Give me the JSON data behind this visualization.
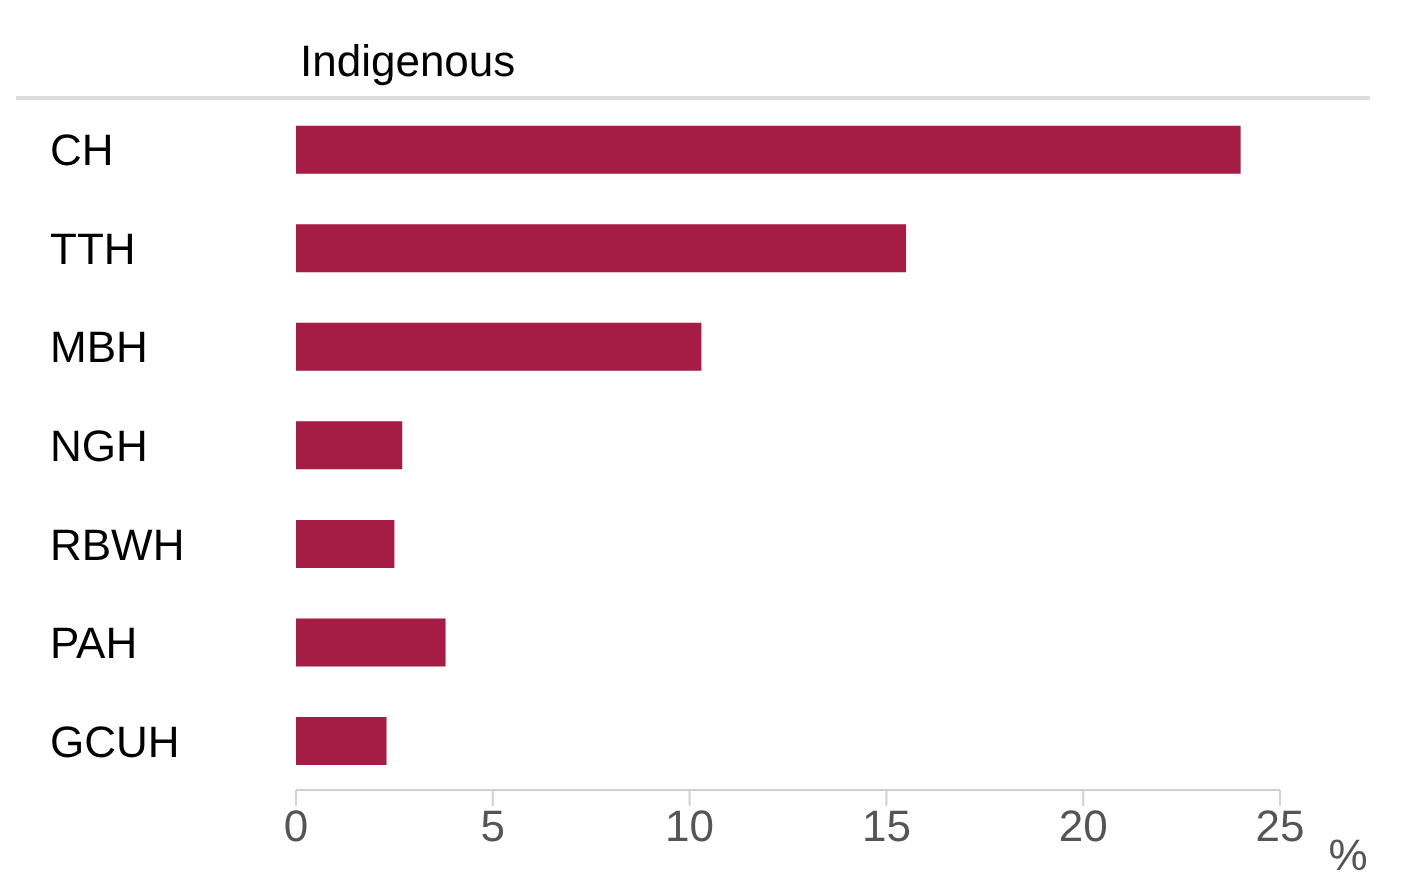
{
  "chart_data": {
    "type": "bar",
    "orientation": "horizontal",
    "title": "Indigenous",
    "xlabel": "%",
    "categories": [
      "CH",
      "TTH",
      "MBH",
      "NGH",
      "RBWH",
      "PAH",
      "GCUH"
    ],
    "values": [
      24.0,
      15.5,
      10.3,
      2.7,
      2.5,
      3.8,
      2.3
    ],
    "color": "#a51d44",
    "xlim": [
      0,
      25
    ],
    "xticks": [
      0,
      5,
      10,
      15,
      20,
      25
    ],
    "grid": false
  }
}
